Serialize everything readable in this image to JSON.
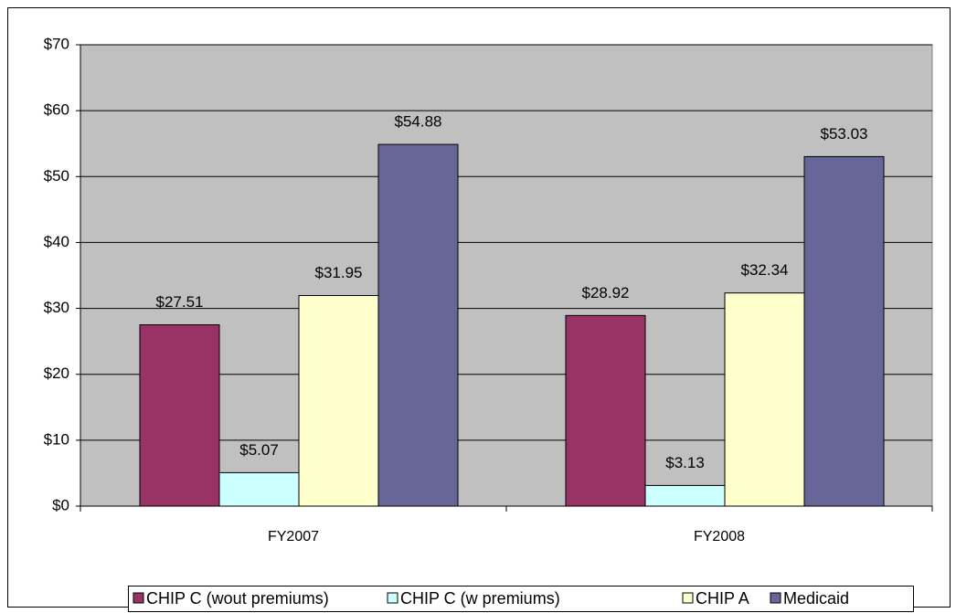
{
  "chart_data": {
    "type": "bar",
    "categories": [
      "FY2007",
      "FY2008"
    ],
    "series": [
      {
        "name": "CHIP C (wout premiums)",
        "color": "#993366",
        "values": [
          27.51,
          28.92
        ],
        "value_labels": [
          "$27.51",
          "$28.92"
        ]
      },
      {
        "name": "CHIP C (w premiums)",
        "color": "#ccffff",
        "values": [
          5.07,
          3.13
        ],
        "value_labels": [
          "$5.07",
          "$3.13"
        ]
      },
      {
        "name": "CHIP A",
        "color": "#ffffcc",
        "values": [
          31.95,
          32.34
        ],
        "value_labels": [
          "$31.95",
          "$32.34"
        ]
      },
      {
        "name": "Medicaid",
        "color": "#666699",
        "values": [
          54.88,
          53.03
        ],
        "value_labels": [
          "$54.88",
          "$53.03"
        ]
      }
    ],
    "ylim": [
      0,
      70
    ],
    "yticks": [
      {
        "value": 0,
        "label": "$0"
      },
      {
        "value": 10,
        "label": "$10"
      },
      {
        "value": 20,
        "label": "$20"
      },
      {
        "value": 30,
        "label": "$30"
      },
      {
        "value": 40,
        "label": "$40"
      },
      {
        "value": 50,
        "label": "$50"
      },
      {
        "value": 60,
        "label": "$60"
      },
      {
        "value": 70,
        "label": "$70"
      }
    ],
    "grid": true,
    "legend": "bottom"
  }
}
